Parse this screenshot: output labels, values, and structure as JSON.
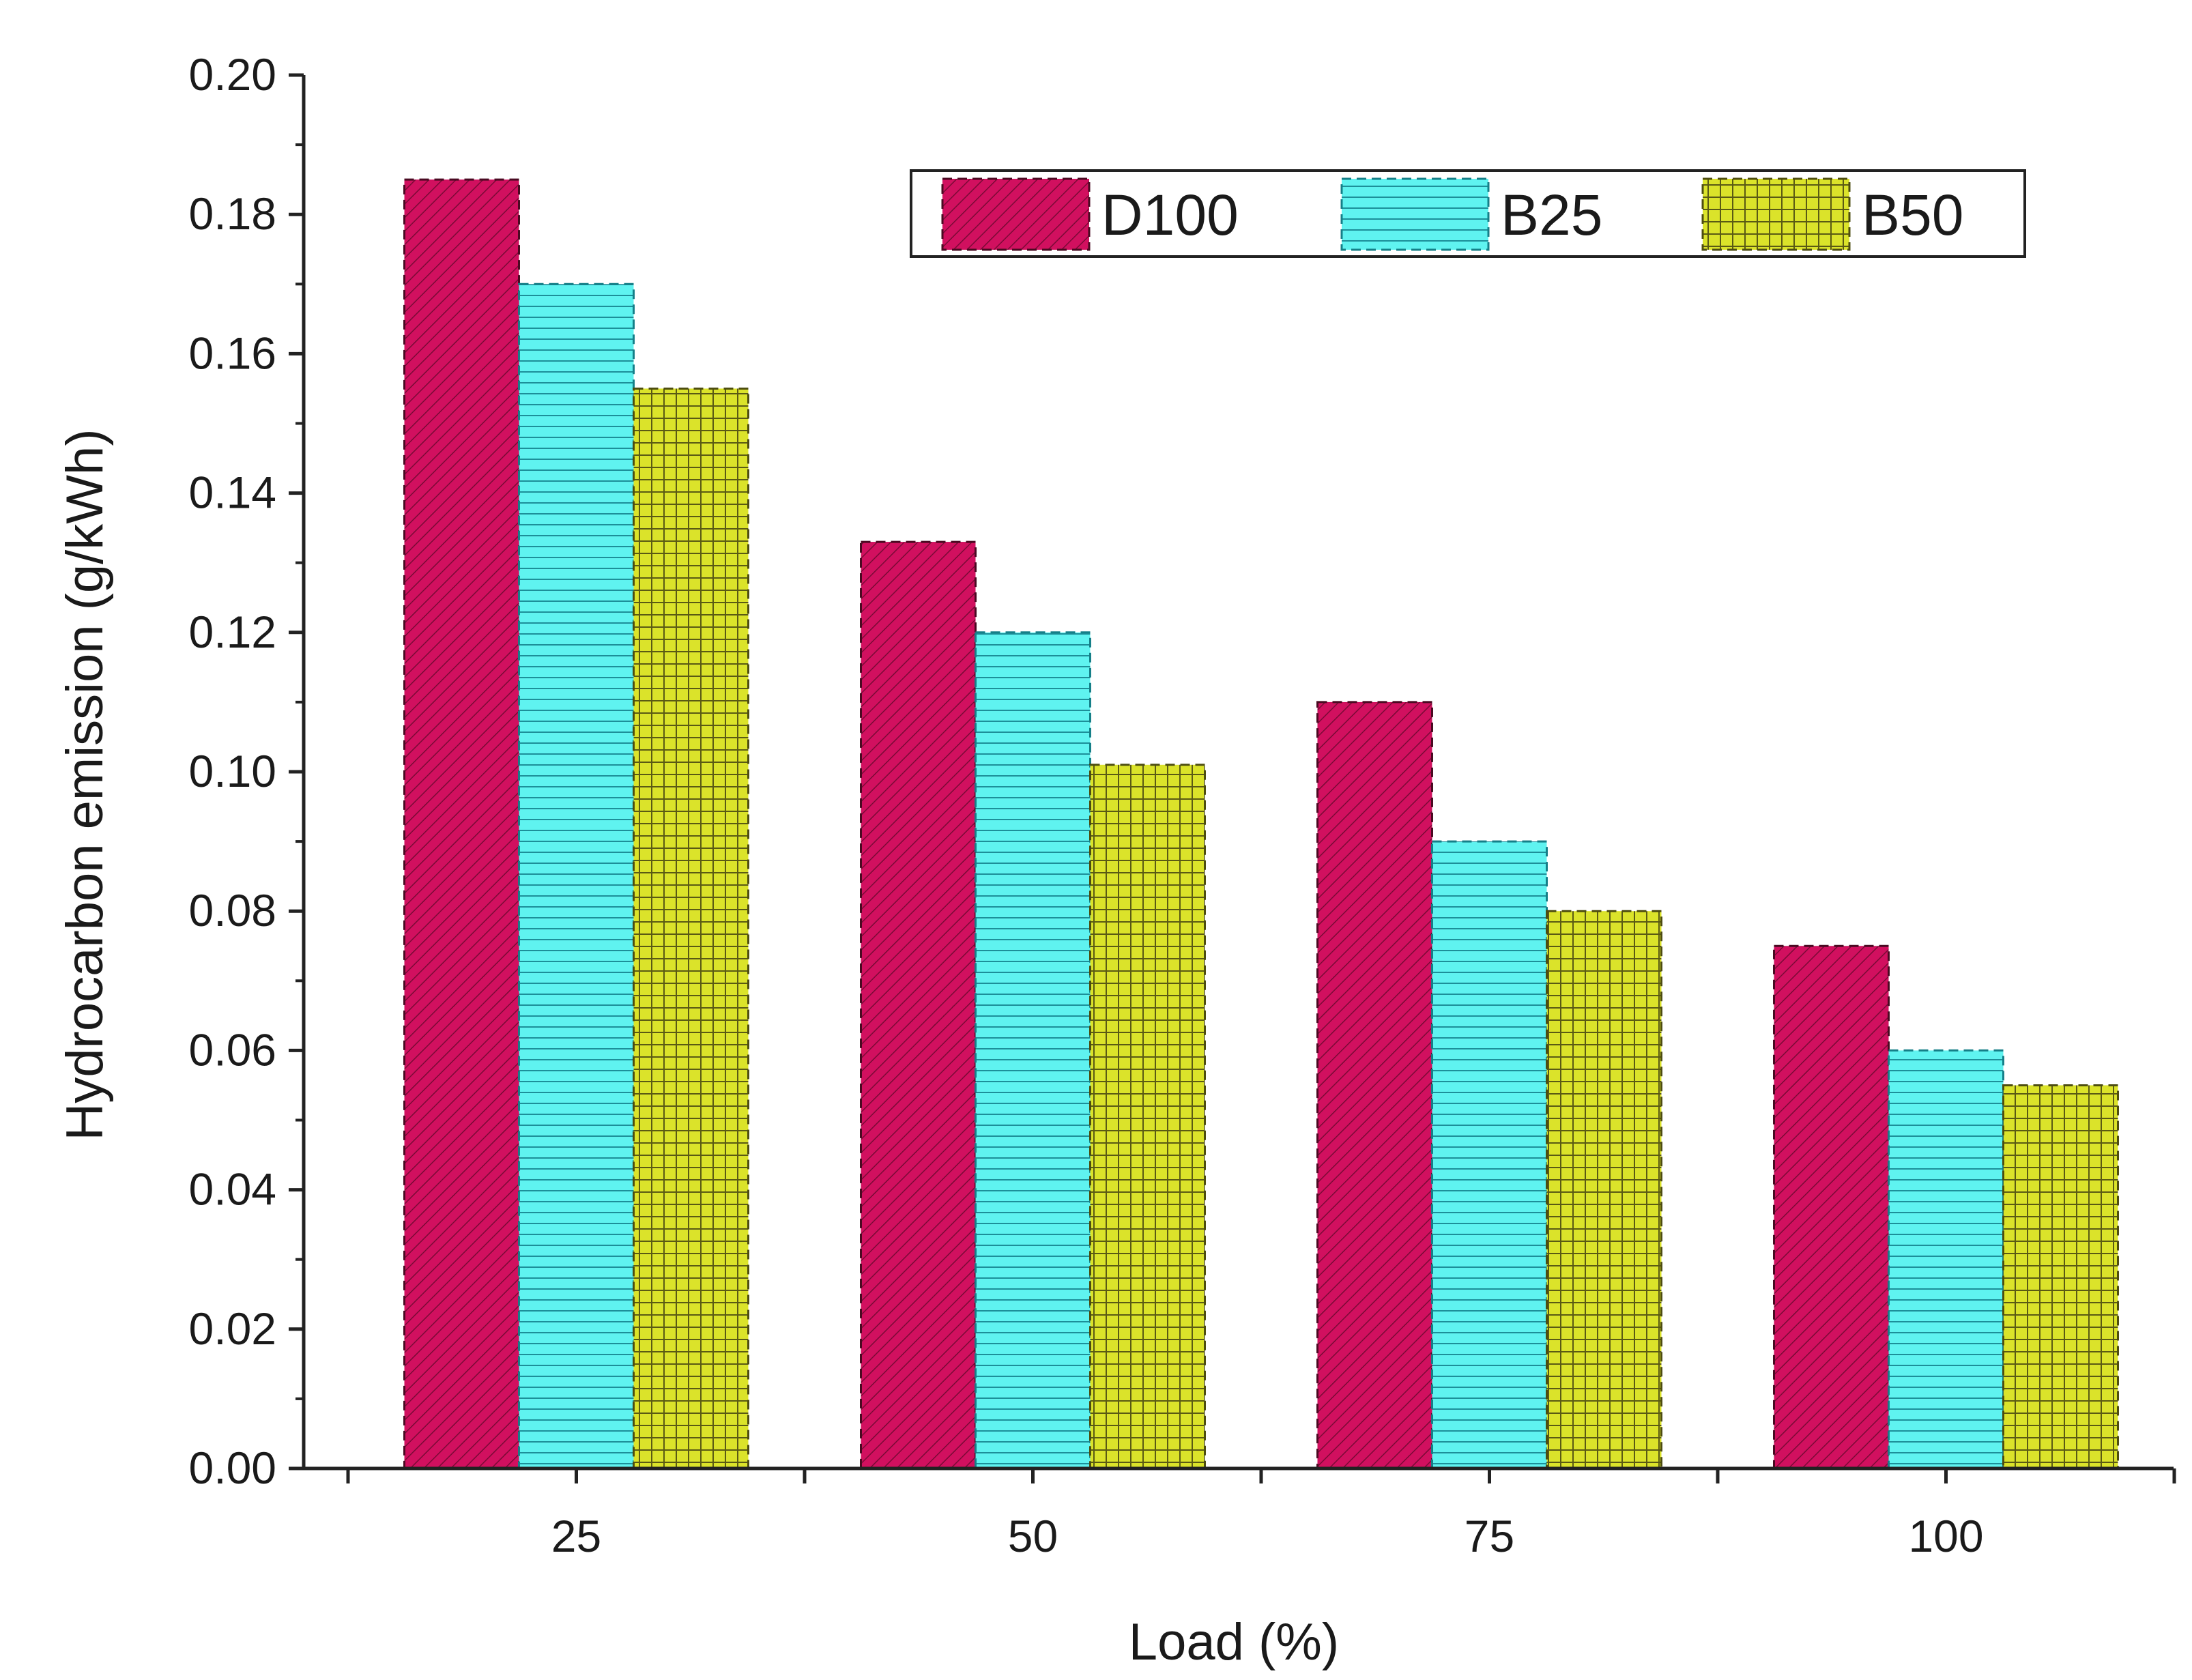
{
  "chart_data": {
    "type": "bar",
    "title": "",
    "xlabel": "Load (%)",
    "ylabel": "Hydrocarbon emission (g/kWh)",
    "categories": [
      "25",
      "50",
      "75",
      "100"
    ],
    "ylim": [
      0,
      0.2
    ],
    "yticks": [
      "0.00",
      "0.02",
      "0.04",
      "0.06",
      "0.08",
      "0.10",
      "0.12",
      "0.14",
      "0.16",
      "0.18",
      "0.20"
    ],
    "legend_position": "top-right",
    "grid": false,
    "series": [
      {
        "name": "D100",
        "values": [
          0.185,
          0.133,
          0.11,
          0.075
        ],
        "color": "#d1105f",
        "pattern": "diagonal"
      },
      {
        "name": "B25",
        "values": [
          0.17,
          0.12,
          0.09,
          0.06
        ],
        "color": "#5ff3f0",
        "pattern": "horizontal"
      },
      {
        "name": "B50",
        "values": [
          0.155,
          0.101,
          0.08,
          0.055
        ],
        "color": "#dbe32a",
        "pattern": "crosshatch"
      }
    ]
  }
}
